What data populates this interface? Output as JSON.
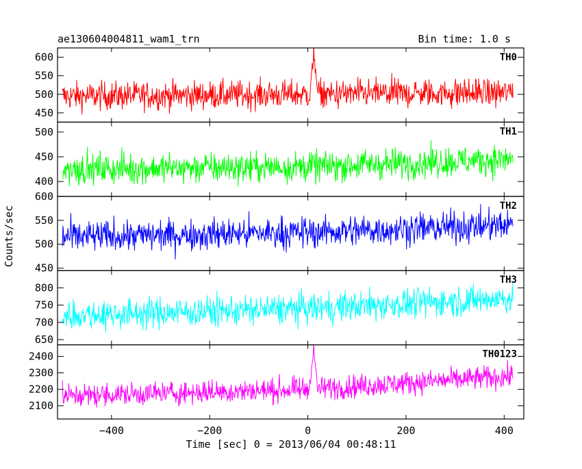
{
  "chart_data": {
    "type": "line",
    "title": "ae130604004811_wam1_trn",
    "bin_time": "Bin time: 1.0 s",
    "xlabel": "Time [sec] 0 = 2013/06/04 00:48:11",
    "ylabel": "Counts/sec",
    "xlim": [
      -510,
      440
    ],
    "x_ticks": [
      -400,
      -200,
      0,
      200,
      400
    ],
    "x_tick_labels": [
      "−400",
      "−200",
      "0",
      "200",
      "400"
    ],
    "x_range": [
      -500,
      418
    ],
    "grid": false,
    "series": [
      {
        "name": "TH0",
        "color": "#ff0000",
        "ylim": [
          425,
          625
        ],
        "y_ticks": [
          450,
          500,
          550,
          600
        ],
        "y_tick_labels": [
          "450",
          "500",
          "550",
          "600"
        ],
        "trend": [
          [
            -500,
            495
          ],
          [
            0,
            500
          ],
          [
            418,
            505
          ]
        ],
        "noise": 35,
        "spike": {
          "x": 12,
          "peak": 625,
          "width": 8
        }
      },
      {
        "name": "TH1",
        "color": "#00ff00",
        "ylim": [
          370,
          520
        ],
        "y_ticks": [
          400,
          450,
          500
        ],
        "y_tick_labels": [
          "400",
          "450",
          "500"
        ],
        "trend": [
          [
            -500,
            425
          ],
          [
            0,
            430
          ],
          [
            418,
            445
          ]
        ],
        "noise": 28
      },
      {
        "name": "TH2",
        "color": "#0000ff",
        "ylim": [
          445,
          600
        ],
        "y_ticks": [
          450,
          500,
          550,
          600
        ],
        "y_tick_labels": [
          "450",
          "500",
          "550",
          "600"
        ],
        "trend": [
          [
            -500,
            515
          ],
          [
            0,
            525
          ],
          [
            418,
            540
          ]
        ],
        "noise": 30
      },
      {
        "name": "TH3",
        "color": "#00ffff",
        "ylim": [
          635,
          850
        ],
        "y_ticks": [
          650,
          700,
          750,
          800
        ],
        "y_tick_labels": [
          "650",
          "700",
          "750",
          "800"
        ],
        "trend": [
          [
            -500,
            720
          ],
          [
            0,
            740
          ],
          [
            418,
            770
          ]
        ],
        "noise": 40
      },
      {
        "name": "TH0123",
        "color": "#ff00ff",
        "ylim": [
          2020,
          2470
        ],
        "y_ticks": [
          2100,
          2200,
          2300,
          2400
        ],
        "y_tick_labels": [
          "2100",
          "2200",
          "2300",
          "2400"
        ],
        "trend": [
          [
            -500,
            2160
          ],
          [
            0,
            2200
          ],
          [
            418,
            2280
          ]
        ],
        "noise": 65,
        "spike": {
          "x": 12,
          "peak": 2470,
          "width": 8
        }
      }
    ]
  }
}
